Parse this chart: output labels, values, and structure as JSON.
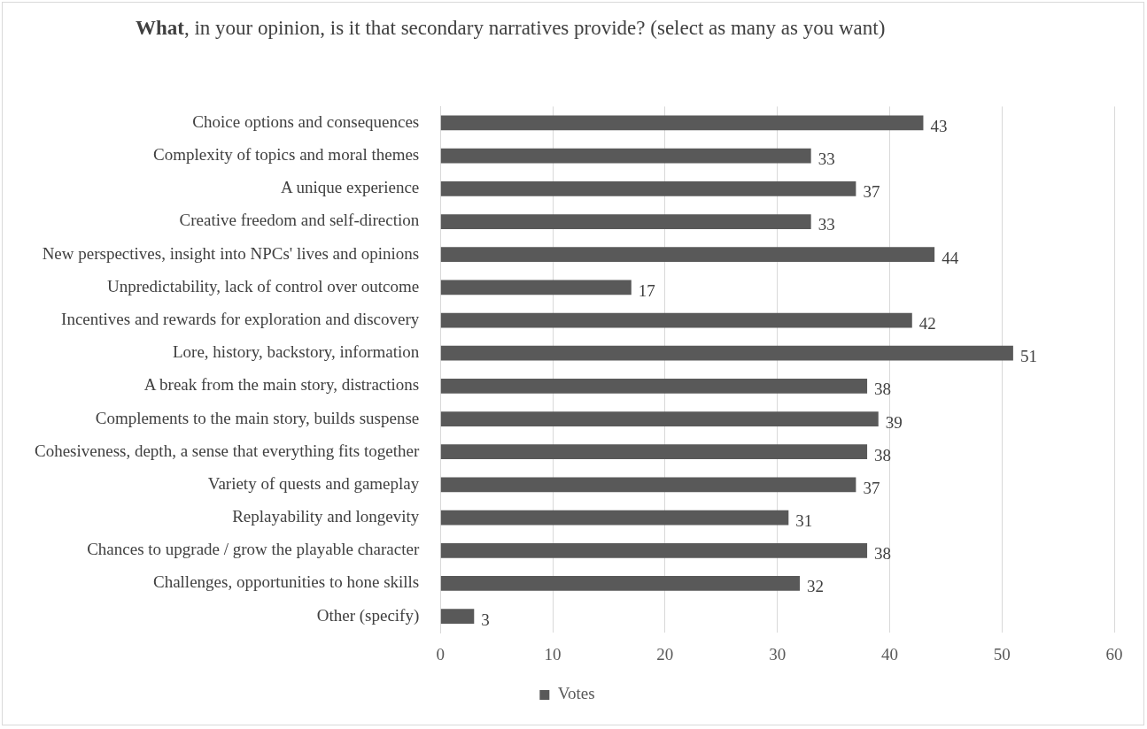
{
  "chart_data": {
    "type": "bar",
    "orientation": "horizontal",
    "title": "What, in your opinion, is it that secondary narratives provide? (select as many as you want)",
    "categories": [
      "Choice options and consequences",
      "Complexity of topics and moral themes",
      "A unique experience",
      "Creative freedom and self-direction",
      "New perspectives, insight into NPCs' lives and opinions",
      "Unpredictability, lack of control over outcome",
      "Incentives and rewards for exploration and discovery",
      "Lore, history, backstory, information",
      "A break from the main story, distractions",
      "Complements to the main story, builds suspense",
      "Cohesiveness, depth, a sense that everything fits together",
      "Variety of quests and gameplay",
      "Replayability and longevity",
      "Chances to upgrade / grow the playable character",
      "Challenges, opportunities to hone skills",
      "Other (specify)"
    ],
    "series": [
      {
        "name": "Votes",
        "color": "#595959",
        "values": [
          43,
          33,
          37,
          33,
          44,
          17,
          42,
          51,
          38,
          39,
          38,
          37,
          31,
          38,
          32,
          3
        ]
      }
    ],
    "xlim": [
      0,
      60
    ],
    "xticks": [
      0,
      10,
      20,
      30,
      40,
      50,
      60
    ],
    "grid": "x",
    "legend": "bottom",
    "data_labels": true
  }
}
